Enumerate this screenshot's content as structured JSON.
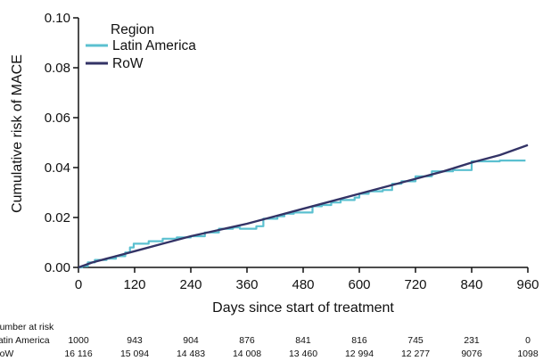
{
  "chart_data": {
    "type": "line",
    "title": "",
    "xlabel": "Days since start of treatment",
    "ylabel": "Cumulative risk of MACE",
    "xlim": [
      0,
      960
    ],
    "ylim": [
      0,
      0.1
    ],
    "x_ticks": [
      "0",
      "120",
      "240",
      "360",
      "480",
      "600",
      "720",
      "840",
      "960"
    ],
    "y_ticks": [
      "0.00",
      "0.02",
      "0.04",
      "0.06",
      "0.08",
      "0.10"
    ],
    "grid": false,
    "legend": {
      "title": "Region",
      "placement": "top-left"
    },
    "series": [
      {
        "name": "Latin America",
        "color": "#5bc0d0",
        "step": true,
        "points": [
          [
            0,
            0
          ],
          [
            8,
            0.0005
          ],
          [
            20,
            0.002
          ],
          [
            35,
            0.003
          ],
          [
            60,
            0.0035
          ],
          [
            80,
            0.0045
          ],
          [
            100,
            0.006
          ],
          [
            110,
            0.008
          ],
          [
            118,
            0.0095
          ],
          [
            150,
            0.0105
          ],
          [
            180,
            0.0115
          ],
          [
            210,
            0.012
          ],
          [
            240,
            0.0125
          ],
          [
            270,
            0.014
          ],
          [
            300,
            0.0155
          ],
          [
            330,
            0.016
          ],
          [
            345,
            0.0155
          ],
          [
            380,
            0.0165
          ],
          [
            395,
            0.0195
          ],
          [
            425,
            0.0205
          ],
          [
            440,
            0.0215
          ],
          [
            460,
            0.022
          ],
          [
            500,
            0.0245
          ],
          [
            520,
            0.025
          ],
          [
            540,
            0.026
          ],
          [
            560,
            0.027
          ],
          [
            590,
            0.028
          ],
          [
            600,
            0.0295
          ],
          [
            620,
            0.0305
          ],
          [
            650,
            0.031
          ],
          [
            670,
            0.0335
          ],
          [
            690,
            0.0345
          ],
          [
            720,
            0.0365
          ],
          [
            755,
            0.0385
          ],
          [
            800,
            0.039
          ],
          [
            840,
            0.0425
          ],
          [
            900,
            0.0428
          ],
          [
            955,
            0.0428
          ]
        ]
      },
      {
        "name": "RoW",
        "color": "#333366",
        "step": false,
        "points": [
          [
            0,
            0
          ],
          [
            30,
            0.002
          ],
          [
            60,
            0.0035
          ],
          [
            100,
            0.0055
          ],
          [
            120,
            0.0065
          ],
          [
            180,
            0.0095
          ],
          [
            240,
            0.0125
          ],
          [
            300,
            0.015
          ],
          [
            360,
            0.0175
          ],
          [
            420,
            0.0205
          ],
          [
            480,
            0.0235
          ],
          [
            540,
            0.0265
          ],
          [
            600,
            0.0295
          ],
          [
            660,
            0.0325
          ],
          [
            720,
            0.0355
          ],
          [
            780,
            0.0385
          ],
          [
            840,
            0.042
          ],
          [
            900,
            0.045
          ],
          [
            960,
            0.049
          ]
        ]
      }
    ],
    "number_at_risk": {
      "title": "Number at risk",
      "x": [
        0,
        120,
        240,
        360,
        480,
        600,
        720,
        840,
        960
      ],
      "rows": [
        {
          "label": "Latin America",
          "values": [
            "1000",
            "943",
            "904",
            "876",
            "841",
            "816",
            "745",
            "231",
            "0"
          ]
        },
        {
          "label": "RoW",
          "values": [
            "16 116",
            "15 094",
            "14 483",
            "14 008",
            "13 460",
            "12 994",
            "12 277",
            "9076",
            "1098"
          ]
        }
      ]
    }
  }
}
